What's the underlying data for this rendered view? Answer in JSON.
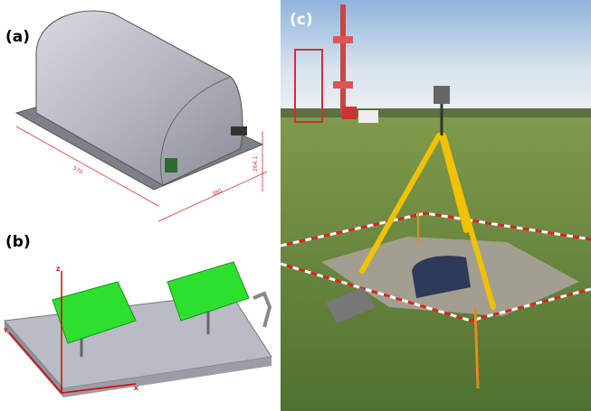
{
  "panels": [
    {
      "label": "(a)",
      "dimensions": [
        "570",
        "380",
        "264.1"
      ]
    },
    {
      "label": "(b)",
      "axes": [
        "Z",
        "Y",
        "X"
      ]
    },
    {
      "label": "(c)"
    }
  ]
}
